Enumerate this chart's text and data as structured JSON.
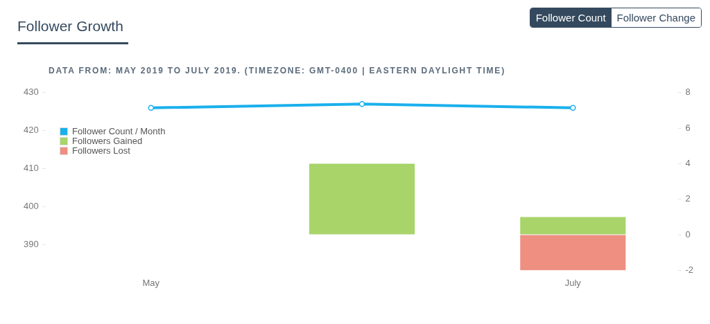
{
  "chart_data": {
    "type": "bar",
    "title": "Follower Growth",
    "subtitle": "DATA FROM: MAY 2019 TO JULY 2019. (TIMEZONE: GMT-0400 | EASTERN DAYLIGHT TIME)",
    "annotations": [
      "Follower Count",
      "Follower Change"
    ],
    "categories": [
      "May",
      null,
      "July"
    ],
    "stacked": true,
    "series": [
      {
        "name": "Follower Count / Month",
        "type": "line",
        "color": "#1ab0ec",
        "values": [
          426,
          427,
          426
        ]
      },
      {
        "name": "Followers Gained",
        "color": "#a8d46a",
        "axis": "y2",
        "values": [
          null,
          4,
          1
        ]
      },
      {
        "name": "Followers Lost",
        "color": "#ee8f82",
        "axis": "y2",
        "values": [
          null,
          null,
          -2
        ]
      }
    ],
    "ylim": [
      383.3,
      430
    ],
    "yticks": [
      390,
      400,
      410,
      420,
      430
    ],
    "y2lim": [
      -2,
      8
    ],
    "y2ticks": [
      -2,
      0,
      2,
      4,
      6,
      8
    ],
    "grid": false,
    "legend": "top left",
    "marker": "circle"
  }
}
